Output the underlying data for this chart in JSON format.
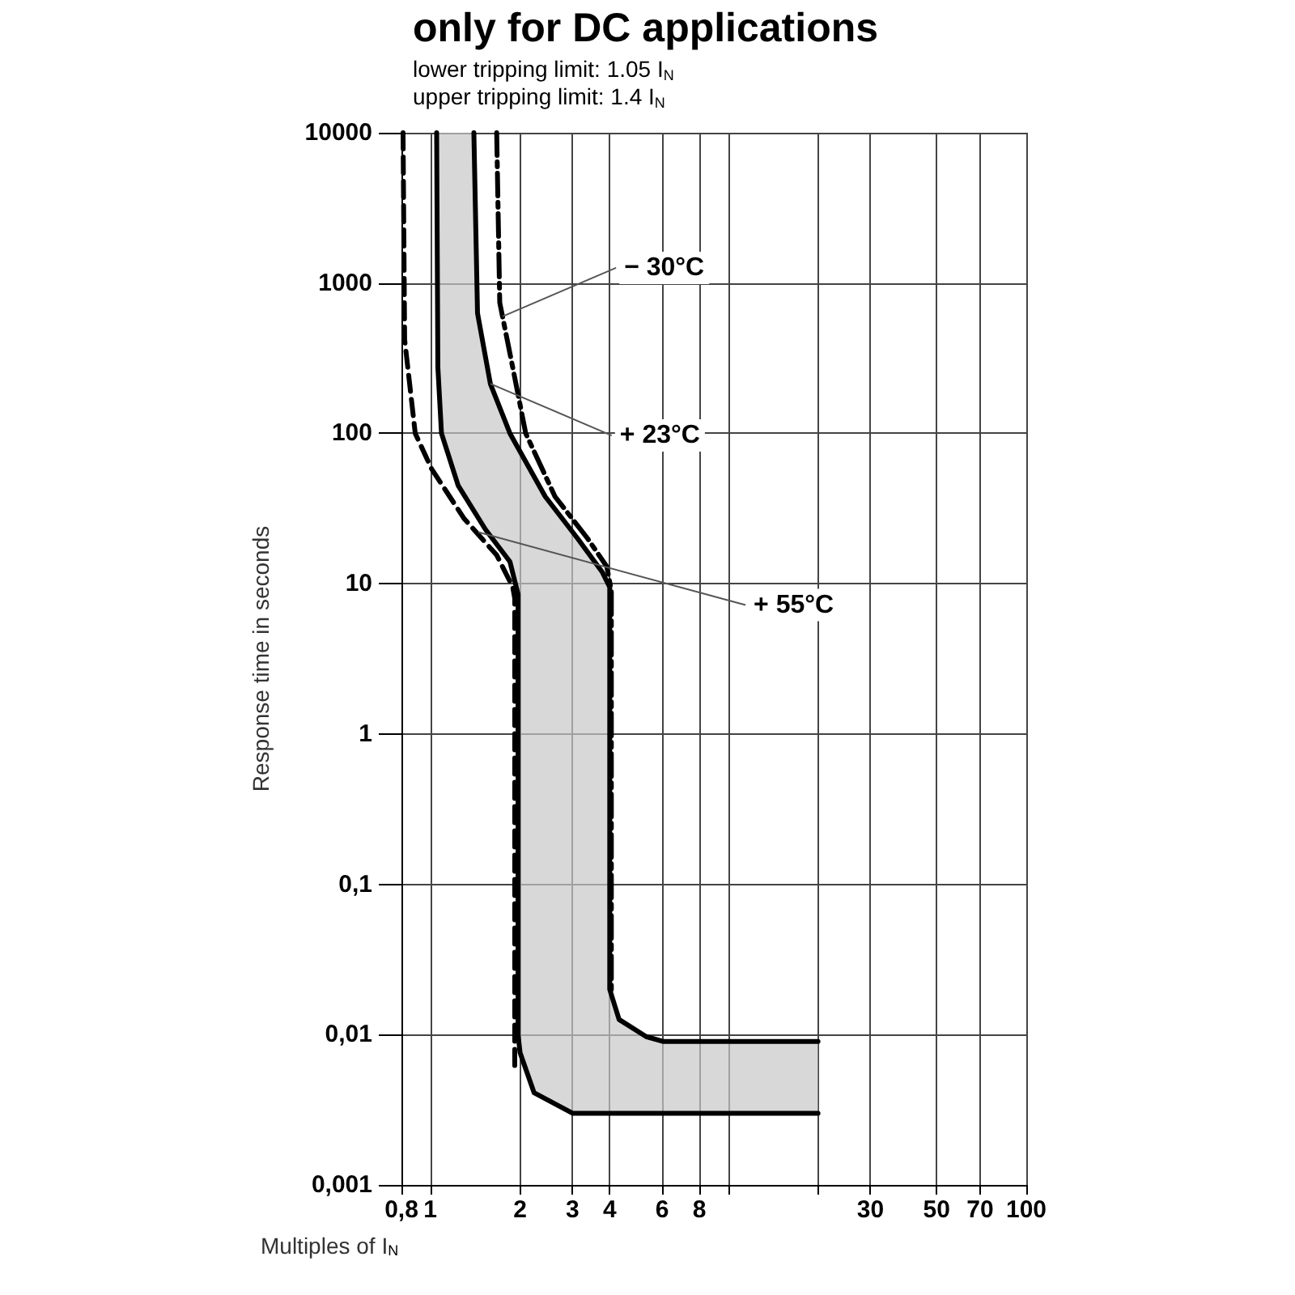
{
  "chart_data": {
    "type": "line",
    "title": "only for DC applications",
    "subtitle": "lower tripping limit: 1.05 I$_{N}$\nupper tripping limit: 1.4 I$_{N}$",
    "xlabel": "Multiples of I$_{N}$",
    "ylabel": "Response time in seconds",
    "log": "xy",
    "grid": true,
    "marker": "none",
    "xlim": [
      0.8,
      100
    ],
    "ylim": [
      0.001,
      10000
    ],
    "xticks": [
      {
        "value": 0.8,
        "label": "0,8"
      },
      1,
      2,
      3,
      4,
      6,
      8,
      {
        "value": 10,
        "label": null
      },
      {
        "value": 20,
        "label": null
      },
      30,
      50,
      70,
      100
    ],
    "yticks": [
      {
        "value": 0.001,
        "label": "0,001"
      },
      {
        "value": 0.01,
        "label": "0,01"
      },
      {
        "value": 0.1,
        "label": "0,1"
      },
      1,
      10,
      100,
      1000,
      10000
    ],
    "series": [
      {
        "color": "#000000",
        "line_style": "solid",
        "x": [
          1.05,
          1.06,
          1.09,
          1.24,
          1.53,
          1.85,
          1.97,
          1.97,
          2.0,
          2.23,
          3.0,
          20
        ],
        "values": [
          10000,
          275,
          100,
          45,
          23,
          14,
          8.5,
          0.01,
          0.0076,
          0.0041,
          0.003,
          0.003
        ]
      },
      {
        "color": "#000000",
        "line_style": "solid",
        "x": [
          1.4,
          1.44,
          1.59,
          1.85,
          2.43,
          3.12,
          3.77,
          4.0,
          4.0,
          4.3,
          5.3,
          6.06,
          20
        ],
        "values": [
          10000,
          630,
          214,
          100,
          38,
          20,
          12,
          9.5,
          0.02,
          0.0126,
          0.0097,
          0.009,
          0.009
        ]
      },
      {
        "color": "#000000",
        "line_style": "dashed",
        "x": [
          0.81,
          0.82,
          0.89,
          1.01,
          1.3,
          1.67,
          1.89,
          1.92,
          1.92
        ],
        "values": [
          10000,
          420,
          100,
          58,
          27,
          15.5,
          9.5,
          8,
          0.006
        ]
      },
      {
        "color": "#000000",
        "line_style": "dashdot",
        "x": [
          1.67,
          1.71,
          1.89,
          2.09,
          2.62,
          3.37,
          3.91,
          4.05,
          4.05
        ],
        "values": [
          10000,
          740,
          275,
          100,
          38,
          20,
          13,
          9,
          0.02
        ]
      }
    ],
    "annotations": [
      {
        "text": "− 30°C",
        "x": 1.75,
        "y": 600
      },
      {
        "text": "+ 23°C",
        "x": 1.59,
        "y": 214
      },
      {
        "text": "+ 55°C",
        "x": 1.45,
        "y": 22
      }
    ]
  }
}
